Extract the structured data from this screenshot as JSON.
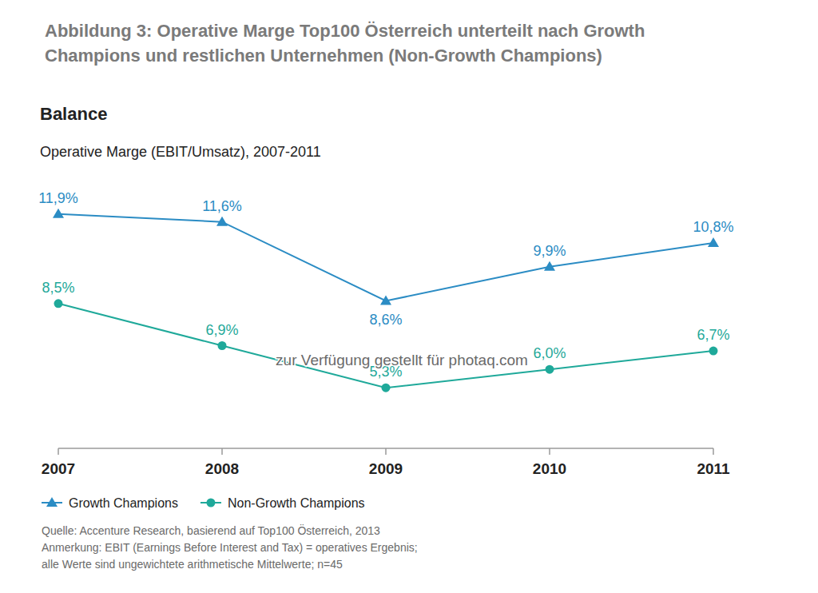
{
  "chart_data": {
    "type": "line",
    "title": [
      "Abbildung 3: Operative Marge Top100 Österreich unterteilt nach Growth",
      "Champions und restlichen Unternehmen (Non-Growth Champions)"
    ],
    "subtitle": "Balance",
    "ylabel": "Operative Marge (EBIT/Umsatz), 2007-2011",
    "categories": [
      "2007",
      "2008",
      "2009",
      "2010",
      "2011"
    ],
    "series": [
      {
        "name": "Growth Champions",
        "color": "#2b8cc4",
        "marker": "triangle",
        "values": [
          11.9,
          11.6,
          8.6,
          9.9,
          10.8
        ],
        "value_labels": [
          "11,9%",
          "11,6%",
          "8,6%",
          "9,9%",
          "10,8%"
        ]
      },
      {
        "name": "Non-Growth Champions",
        "color": "#1fa99a",
        "marker": "circle",
        "values": [
          8.5,
          6.9,
          5.3,
          6.0,
          6.7
        ],
        "value_labels": [
          "8,5%",
          "6,9%",
          "5,3%",
          "6,0%",
          "6,7%"
        ]
      }
    ],
    "ylim": [
      3,
      12.5
    ],
    "tick_labels": "x",
    "grid": false,
    "data_labels": true,
    "legend": "bottom",
    "annotations": [
      "zur Verfügung gestellt für photaq.com"
    ],
    "notes": [
      "Quelle: Accenture Research, basierend auf Top100 Österreich, 2013",
      "Anmerkung: EBIT (Earnings Before Interest and Tax) = operatives Ergebnis;",
      "alle Werte sind ungewichtete arithmetische Mittelwerte; n=45"
    ]
  }
}
